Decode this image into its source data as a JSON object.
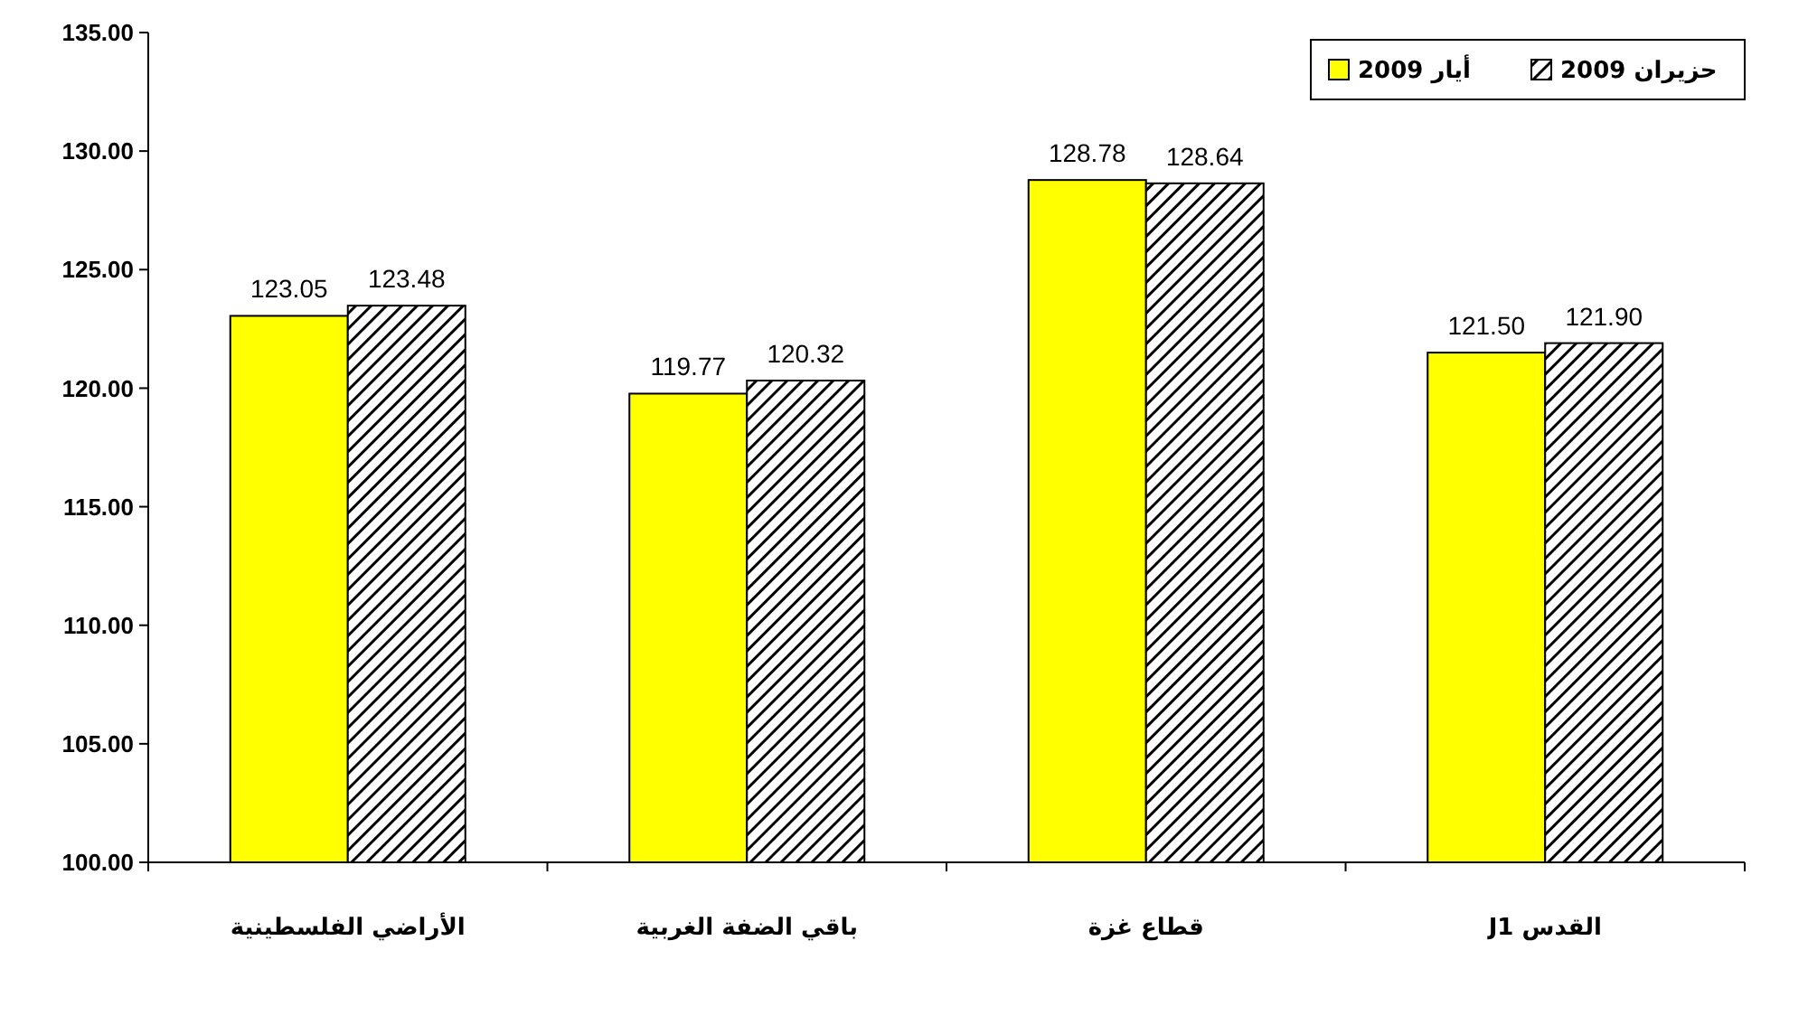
{
  "chart_data": {
    "type": "bar",
    "categories": [
      "الأراضي الفلسطينية",
      "باقي الضفة الغربية",
      "قطاع غزة",
      "القدس J1"
    ],
    "series": [
      {
        "name": "أيار 2009",
        "color": "#ffff00",
        "values": [
          123.05,
          119.77,
          128.78,
          121.5
        ]
      },
      {
        "name": "حزيران 2009",
        "color": "#000000",
        "values": [
          123.48,
          120.32,
          128.64,
          121.9
        ]
      }
    ],
    "value_labels": [
      [
        "123.05",
        "119.77",
        "128.78",
        "121.50"
      ],
      [
        "123.48",
        "120.32",
        "128.64",
        "121.90"
      ]
    ],
    "ylim": [
      100,
      135
    ],
    "yticks": [
      {
        "value": 100,
        "label": "100.00"
      },
      {
        "value": 105,
        "label": "105.00"
      },
      {
        "value": 110,
        "label": "110.00"
      },
      {
        "value": 115,
        "label": "115.00"
      },
      {
        "value": 120,
        "label": "120.00"
      },
      {
        "value": 125,
        "label": "125.00"
      },
      {
        "value": 130,
        "label": "130.00"
      },
      {
        "value": 135,
        "label": "135.00"
      }
    ],
    "grid": false,
    "legend": "top right"
  }
}
